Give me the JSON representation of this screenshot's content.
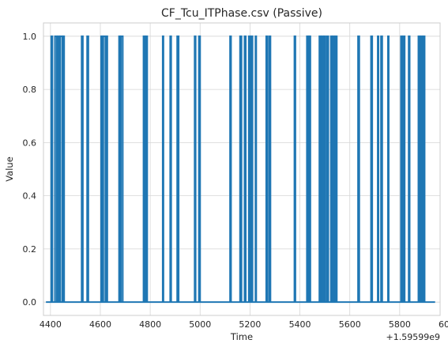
{
  "chart_data": {
    "type": "line",
    "title": "CF_Tcu_ITPhase.csv (Passive)",
    "xlabel": "Time",
    "ylabel": "Value",
    "x_offset_label": "+1.59599e9",
    "xlim": [
      4372,
      5962
    ],
    "ylim": [
      -0.05,
      1.05
    ],
    "xticks": [
      4400,
      4600,
      4800,
      5000,
      5200,
      5400,
      5600,
      5800,
      6000
    ],
    "yticks": [
      0.0,
      0.2,
      0.4,
      0.6,
      0.8,
      1.0
    ],
    "xtick_labels": [
      "4400",
      "4600",
      "4800",
      "5000",
      "5200",
      "5400",
      "5600",
      "5800",
      "6000"
    ],
    "ytick_labels": [
      "0.0",
      "0.2",
      "0.4",
      "0.6",
      "0.8",
      "1.0"
    ],
    "grid": true,
    "line_color": "#1f77b4",
    "series": [
      {
        "x_start": 4382,
        "x_end": 5942,
        "baseline": 0,
        "high": 1,
        "pulses": [
          [
            4403,
            4408
          ],
          [
            4418,
            4425
          ],
          [
            4430,
            4436
          ],
          [
            4440,
            4448
          ],
          [
            4452,
            4455
          ],
          [
            4525,
            4530
          ],
          [
            4547,
            4552
          ],
          [
            4603,
            4608
          ],
          [
            4612,
            4620
          ],
          [
            4625,
            4628
          ],
          [
            4675,
            4680
          ],
          [
            4683,
            4690
          ],
          [
            4773,
            4778
          ],
          [
            4783,
            4788
          ],
          [
            4850,
            4853
          ],
          [
            4880,
            4884
          ],
          [
            4908,
            4914
          ],
          [
            4978,
            4982
          ],
          [
            4995,
            5000
          ],
          [
            5120,
            5124
          ],
          [
            5160,
            5166
          ],
          [
            5178,
            5183
          ],
          [
            5195,
            5200
          ],
          [
            5205,
            5210
          ],
          [
            5222,
            5225
          ],
          [
            5265,
            5270
          ],
          [
            5277,
            5282
          ],
          [
            5378,
            5382
          ],
          [
            5428,
            5434
          ],
          [
            5438,
            5442
          ],
          [
            5478,
            5483
          ],
          [
            5488,
            5494
          ],
          [
            5498,
            5502
          ],
          [
            5508,
            5514
          ],
          [
            5524,
            5529
          ],
          [
            5533,
            5538
          ],
          [
            5543,
            5548
          ],
          [
            5633,
            5638
          ],
          [
            5685,
            5690
          ],
          [
            5712,
            5715
          ],
          [
            5725,
            5730
          ],
          [
            5753,
            5756
          ],
          [
            5805,
            5810
          ],
          [
            5815,
            5820
          ],
          [
            5836,
            5840
          ],
          [
            5875,
            5880
          ],
          [
            5885,
            5890
          ],
          [
            5895,
            5900
          ]
        ]
      }
    ]
  }
}
